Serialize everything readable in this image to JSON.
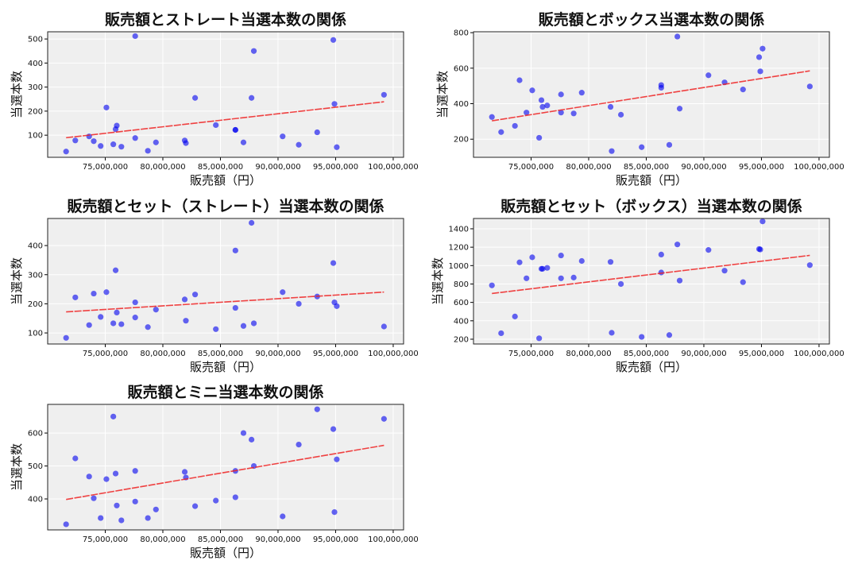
{
  "chart_data": [
    {
      "type": "scatter",
      "title": "販売額とストレート当選本数の関係",
      "xlabel": "販売額（円）",
      "ylabel": "当選本数",
      "xlim": [
        70000000,
        100900000
      ],
      "ylim": [
        8,
        530
      ],
      "xticks": [
        75000000,
        80000000,
        85000000,
        90000000,
        95000000,
        100000000
      ],
      "xtick_labels": [
        "75,000,000",
        "80,000,000",
        "85,000,000",
        "90,000,000",
        "95,000,000",
        "100,000,000"
      ],
      "yticks": [
        100,
        200,
        300,
        400,
        500
      ],
      "y": [
        32,
        78,
        95,
        75,
        55,
        215,
        62,
        125,
        140,
        52,
        512,
        88,
        35,
        70,
        78,
        67,
        255,
        142,
        122,
        122,
        70,
        255,
        450,
        95,
        60,
        112,
        496,
        230,
        50,
        268
      ]
    },
    {
      "type": "scatter",
      "title": "販売額とボックス当選本数の関係",
      "xlabel": "販売額（円）",
      "ylabel": "当選本数",
      "xlim": [
        70000000,
        100900000
      ],
      "ylim": [
        98,
        805
      ],
      "xticks": [
        75000000,
        80000000,
        85000000,
        90000000,
        95000000,
        100000000
      ],
      "xtick_labels": [
        "75,000,000",
        "80,000,000",
        "85,000,000",
        "90,000,000",
        "95,000,000",
        "100,000,000"
      ],
      "yticks": [
        200,
        400,
        600,
        800
      ],
      "y": [
        325,
        240,
        275,
        532,
        350,
        475,
        208,
        420,
        382,
        390,
        452,
        350,
        345,
        462,
        382,
        133,
        338,
        155,
        505,
        490,
        168,
        778,
        372,
        560,
        520,
        480,
        662,
        582,
        710,
        497
      ]
    },
    {
      "type": "scatter",
      "title": "販売額とセット（ストレート）当選本数の関係",
      "xlabel": "販売額（円）",
      "ylabel": "当選本数",
      "xlim": [
        70000000,
        100900000
      ],
      "ylim": [
        62,
        493
      ],
      "xticks": [
        75000000,
        80000000,
        85000000,
        90000000,
        95000000,
        100000000
      ],
      "xtick_labels": [
        "75,000,000",
        "80,000,000",
        "85,000,000",
        "90,000,000",
        "95,000,000",
        "100,000,000"
      ],
      "yticks": [
        100,
        200,
        300,
        400
      ],
      "y": [
        83,
        222,
        127,
        235,
        155,
        240,
        133,
        315,
        170,
        130,
        205,
        153,
        120,
        180,
        215,
        142,
        232,
        113,
        383,
        186,
        124,
        478,
        133,
        240,
        200,
        225,
        340,
        205,
        192,
        122
      ]
    },
    {
      "type": "scatter",
      "title": "販売額とセット（ボックス）当選本数の関係",
      "xlabel": "販売額（円）",
      "ylabel": "当選本数",
      "xlim": [
        70000000,
        100900000
      ],
      "ylim": [
        148,
        1512
      ],
      "xticks": [
        75000000,
        80000000,
        85000000,
        90000000,
        95000000,
        100000000
      ],
      "xtick_labels": [
        "75,000,000",
        "80,000,000",
        "85,000,000",
        "90,000,000",
        "95,000,000",
        "100,000,000"
      ],
      "yticks": [
        200,
        400,
        600,
        800,
        1000,
        1200,
        1400
      ],
      "y": [
        785,
        265,
        447,
        1035,
        862,
        1090,
        210,
        965,
        965,
        975,
        1110,
        862,
        870,
        1050,
        1040,
        270,
        800,
        225,
        1120,
        925,
        245,
        1230,
        837,
        1170,
        945,
        820,
        1180,
        1175,
        1480,
        1005
      ]
    },
    {
      "type": "scatter",
      "title": "販売額とミニ当選本数の関係",
      "xlabel": "販売額（円）",
      "ylabel": "当選本数",
      "xlim": [
        70000000,
        100900000
      ],
      "ylim": [
        306,
        687
      ],
      "xticks": [
        75000000,
        80000000,
        85000000,
        90000000,
        95000000,
        100000000
      ],
      "xtick_labels": [
        "75,000,000",
        "80,000,000",
        "85,000,000",
        "90,000,000",
        "95,000,000",
        "100,000,000"
      ],
      "yticks": [
        400,
        500,
        600
      ],
      "y": [
        323,
        523,
        468,
        402,
        342,
        460,
        650,
        477,
        380,
        335,
        485,
        392,
        342,
        368,
        482,
        465,
        378,
        395,
        485,
        405,
        600,
        580,
        500,
        347,
        565,
        672,
        612,
        360,
        520,
        643
      ]
    }
  ],
  "x_values": [
    71600000,
    72400000,
    73600000,
    74000000,
    74600000,
    75100000,
    75700000,
    75900000,
    76000000,
    76400000,
    77600000,
    77600000,
    78700000,
    79400000,
    81900000,
    82000000,
    82800000,
    84600000,
    86300000,
    86300000,
    87000000,
    87700000,
    87900000,
    90400000,
    91800000,
    93400000,
    94800000,
    94900000,
    95100000,
    99200000
  ],
  "colors": {
    "points": "#0000ee",
    "trend": "#ee2222",
    "plot_bg": "#efefef",
    "grid": "#ffffff"
  },
  "grid": true,
  "trend_line": "linear-fit-dashed"
}
